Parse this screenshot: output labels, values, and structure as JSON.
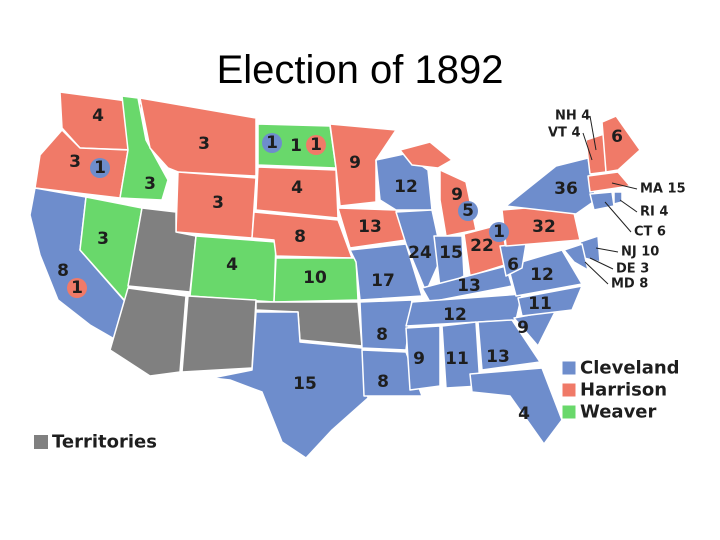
{
  "title": "Election of 1892",
  "legend": [
    {
      "name": "Cleveland",
      "color": "#6e8dcc"
    },
    {
      "name": "Harrison",
      "color": "#f07a68"
    },
    {
      "name": "Weaver",
      "color": "#69d86b"
    }
  ],
  "territories": {
    "name": "Territories",
    "color": "#808080"
  },
  "state_labels": [
    4,
    3,
    8,
    3,
    3,
    3,
    3,
    4,
    1,
    4,
    8,
    10,
    15,
    9,
    13,
    17,
    8,
    8,
    12,
    24,
    9,
    15,
    22,
    13,
    12,
    9,
    11,
    13,
    4,
    9,
    11,
    12,
    6,
    32,
    36,
    6
  ],
  "circled_labels": [
    {
      "value": 1,
      "color": "#6e8dcc"
    },
    {
      "value": 1,
      "color": "#f07a68"
    },
    {
      "value": 1,
      "color": "#6e8dcc"
    },
    {
      "value": 1,
      "color": "#f07a68"
    },
    {
      "value": 5,
      "color": "#6e8dcc"
    },
    {
      "value": 1,
      "color": "#6e8dcc"
    }
  ],
  "callouts": [
    "NH 4",
    "VT 4",
    "MA 15",
    "RI 4",
    "CT 6",
    "NJ 10",
    "DE 3",
    "MD 8"
  ]
}
